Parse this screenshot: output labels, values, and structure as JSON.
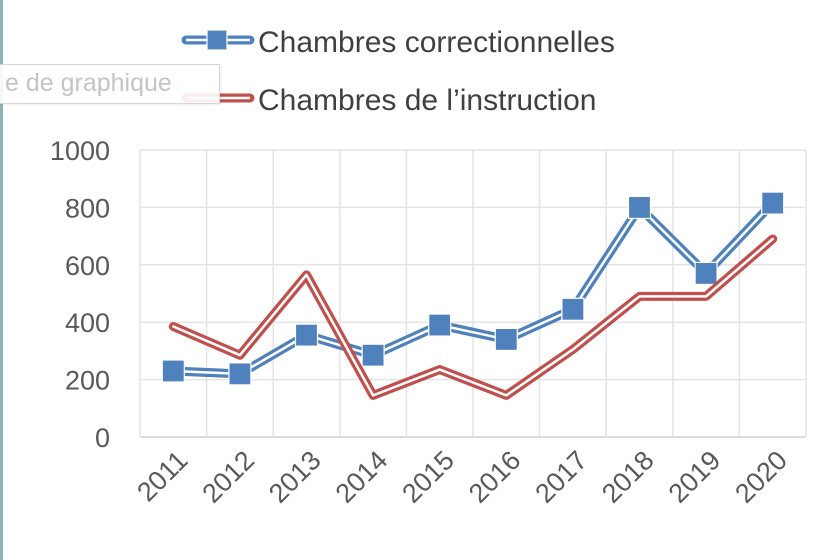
{
  "chart_data": {
    "type": "line",
    "title": "",
    "xlabel": "",
    "ylabel": "",
    "categories": [
      "2011",
      "2012",
      "2013",
      "2014",
      "2015",
      "2016",
      "2017",
      "2018",
      "2019",
      "2020"
    ],
    "ylim": [
      0,
      1000
    ],
    "yticks": [
      "0",
      "200",
      "400",
      "600",
      "800",
      "1000"
    ],
    "grid": true,
    "legend": "top",
    "series": [
      {
        "name": "Chambres correctionnelles",
        "color": "#4f81bd",
        "marker": "square",
        "values": [
          230,
          220,
          355,
          285,
          390,
          340,
          445,
          800,
          570,
          815
        ]
      },
      {
        "name": "Chambres de l’instruction",
        "color": "#c0504d",
        "marker": "none",
        "values": [
          385,
          285,
          565,
          145,
          235,
          145,
          305,
          490,
          490,
          690
        ]
      }
    ]
  },
  "tooltip": {
    "text": "e de graphique"
  }
}
